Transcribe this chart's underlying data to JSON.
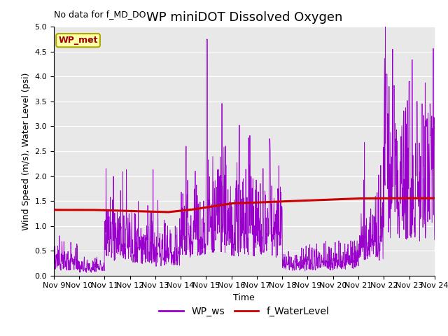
{
  "title": "WP miniDOT Dissolved Oxygen",
  "no_data_text": "No data for f_MD_DO",
  "xlabel": "Time",
  "ylabel": "Wind Speed (m/s), Water Level (psi)",
  "ylim": [
    0.0,
    5.0
  ],
  "yticks": [
    0.0,
    0.5,
    1.0,
    1.5,
    2.0,
    2.5,
    3.0,
    3.5,
    4.0,
    4.5,
    5.0
  ],
  "xtick_labels": [
    "Nov 9",
    "Nov 10",
    "Nov 11",
    "Nov 12",
    "Nov 13",
    "Nov 14",
    "Nov 15",
    "Nov 16",
    "Nov 17",
    "Nov 18",
    "Nov 19",
    "Nov 20",
    "Nov 21",
    "Nov 22",
    "Nov 23",
    "Nov 24"
  ],
  "wp_ws_color": "#9900CC",
  "f_wl_color": "#CC0000",
  "legend_wp_ws": "WP_ws",
  "legend_f_wl": "f_WaterLevel",
  "box_label": "WP_met",
  "box_facecolor": "#FFFFAA",
  "box_edgecolor": "#AAAA00",
  "box_textcolor": "#990000",
  "background_color": "#E8E8E8",
  "title_fontsize": 13,
  "axis_fontsize": 9,
  "tick_fontsize": 8,
  "legend_fontsize": 10
}
